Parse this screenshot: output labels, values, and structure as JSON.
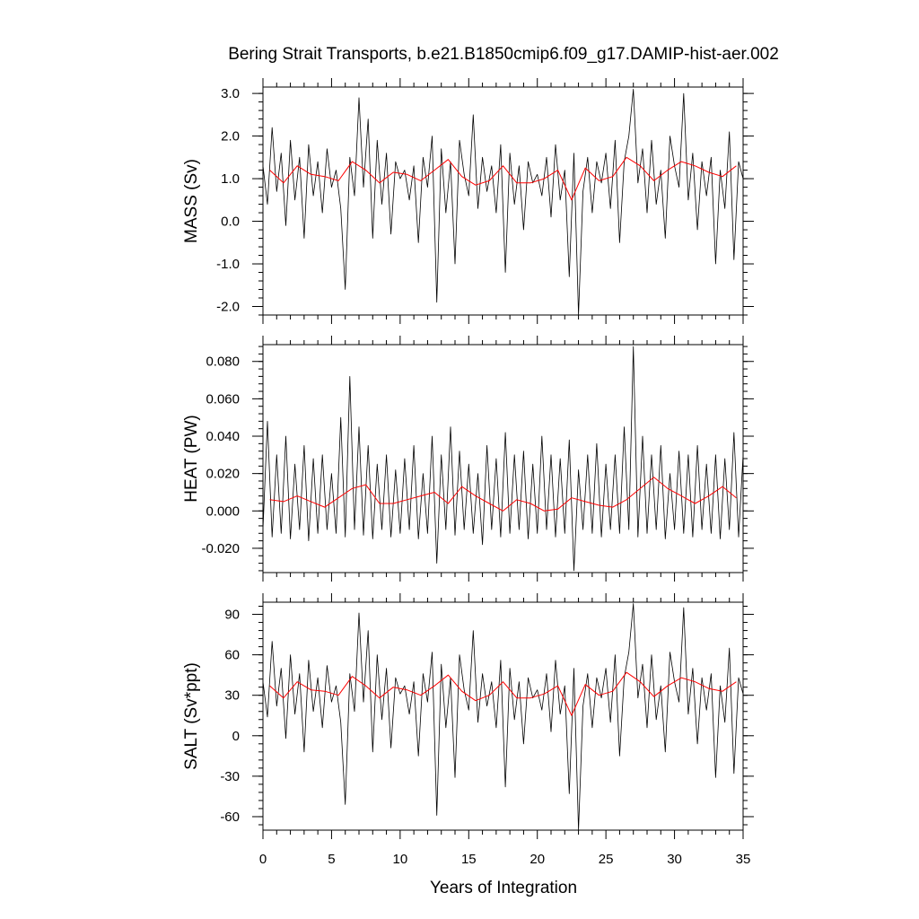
{
  "chart_data": {
    "type": "line",
    "title": "Bering Strait Transports, b.e21.B1850cmip6.f09_g17.DAMIP-hist-aer.002",
    "xlabel": "Years of Integration",
    "xlim": [
      0,
      35
    ],
    "x_ticks": [
      0,
      5,
      10,
      15,
      20,
      25,
      30,
      35
    ],
    "x_tick_labels": [
      "0",
      "5",
      "10",
      "15",
      "20",
      "25",
      "30",
      "35"
    ],
    "panels": [
      {
        "ylabel": "MASS (Sv)",
        "ylim": [
          -2.2,
          3.15
        ],
        "y_ticks": [
          -2.0,
          -1.0,
          0.0,
          1.0,
          2.0,
          3.0
        ],
        "y_tick_labels": [
          "-2.0",
          "-1.0",
          "0.0",
          "1.0",
          "2.0",
          "3.0"
        ],
        "series": [
          {
            "resolution": "monthly",
            "color": "#000000",
            "x": [
              0.0,
              0.33,
              0.67,
              1.0,
              1.33,
              1.67,
              2.0,
              2.33,
              2.67,
              3.0,
              3.33,
              3.67,
              4.0,
              4.33,
              4.67,
              5.0,
              5.33,
              5.67,
              6.0,
              6.33,
              6.67,
              7.0,
              7.33,
              7.67,
              8.0,
              8.33,
              8.67,
              9.0,
              9.33,
              9.67,
              10.0,
              10.33,
              10.67,
              11.0,
              11.33,
              11.67,
              12.0,
              12.33,
              12.67,
              13.0,
              13.33,
              13.67,
              14.0,
              14.33,
              14.67,
              15.0,
              15.33,
              15.67,
              16.0,
              16.33,
              16.67,
              17.0,
              17.33,
              17.67,
              18.0,
              18.33,
              18.67,
              19.0,
              19.33,
              19.67,
              20.0,
              20.33,
              20.67,
              21.0,
              21.33,
              21.67,
              22.0,
              22.33,
              22.67,
              23.0,
              23.33,
              23.67,
              24.0,
              24.33,
              24.67,
              25.0,
              25.33,
              25.67,
              26.0,
              26.33,
              26.67,
              27.0,
              27.33,
              27.67,
              28.0,
              28.33,
              28.67,
              29.0,
              29.33,
              29.67,
              30.0,
              30.33,
              30.67,
              31.0,
              31.33,
              31.67,
              32.0,
              32.33,
              32.67,
              33.0,
              33.33,
              33.67,
              34.0,
              34.33,
              34.67,
              35.0
            ],
            "values": [
              1.3,
              0.4,
              2.2,
              0.7,
              1.6,
              -0.1,
              1.9,
              0.5,
              1.5,
              -0.4,
              1.8,
              0.6,
              1.4,
              0.2,
              1.7,
              0.8,
              1.2,
              0.3,
              -1.6,
              1.5,
              0.6,
              2.9,
              0.8,
              2.4,
              -0.4,
              1.9,
              0.4,
              1.6,
              -0.3,
              1.4,
              1.0,
              1.2,
              0.5,
              1.3,
              -0.5,
              1.5,
              0.8,
              2.0,
              -1.9,
              1.7,
              0.2,
              1.4,
              -1.0,
              1.9,
              1.1,
              0.6,
              2.5,
              0.3,
              1.5,
              0.7,
              1.3,
              0.2,
              1.8,
              -1.2,
              1.6,
              0.4,
              1.3,
              -0.2,
              1.4,
              0.9,
              1.1,
              0.6,
              1.5,
              0.1,
              1.8,
              0.5,
              1.2,
              -1.3,
              1.6,
              -2.2,
              0.7,
              1.5,
              0.2,
              1.4,
              0.9,
              1.6,
              0.3,
              1.9,
              -0.5,
              1.4,
              2.0,
              3.1,
              0.9,
              1.7,
              0.2,
              1.9,
              0.4,
              1.2,
              -0.4,
              2.0,
              1.3,
              0.8,
              3.0,
              0.5,
              1.6,
              -0.2,
              1.4,
              0.6,
              1.5,
              -1.0,
              1.2,
              0.3,
              2.1,
              -0.9,
              1.4,
              1.0
            ]
          },
          {
            "resolution": "annual",
            "color": "#ff0000",
            "x": [
              0.5,
              1.5,
              2.5,
              3.5,
              4.5,
              5.5,
              6.5,
              7.5,
              8.5,
              9.5,
              10.5,
              11.5,
              12.5,
              13.5,
              14.5,
              15.5,
              16.5,
              17.5,
              18.5,
              19.5,
              20.5,
              21.5,
              22.5,
              23.5,
              24.5,
              25.5,
              26.5,
              27.5,
              28.5,
              29.5,
              30.5,
              31.5,
              32.5,
              33.5,
              34.5
            ],
            "values": [
              1.2,
              0.9,
              1.3,
              1.1,
              1.05,
              0.95,
              1.4,
              1.2,
              0.9,
              1.15,
              1.1,
              0.95,
              1.2,
              1.45,
              1.05,
              0.85,
              0.95,
              1.3,
              0.9,
              0.9,
              1.0,
              1.2,
              0.5,
              1.25,
              0.95,
              1.05,
              1.5,
              1.3,
              0.95,
              1.2,
              1.4,
              1.3,
              1.15,
              1.05,
              1.3
            ]
          }
        ]
      },
      {
        "ylabel": "HEAT (PW)",
        "ylim": [
          -0.033,
          0.089
        ],
        "y_ticks": [
          -0.02,
          0.0,
          0.02,
          0.04,
          0.06,
          0.08
        ],
        "y_tick_labels": [
          "-0.020",
          "0.000",
          "0.020",
          "0.040",
          "0.060",
          "0.080"
        ],
        "series": [
          {
            "resolution": "monthly",
            "color": "#000000",
            "x": [
              0.0,
              0.33,
              0.67,
              1.0,
              1.33,
              1.67,
              2.0,
              2.33,
              2.67,
              3.0,
              3.33,
              3.67,
              4.0,
              4.33,
              4.67,
              5.0,
              5.33,
              5.67,
              6.0,
              6.33,
              6.67,
              7.0,
              7.33,
              7.67,
              8.0,
              8.33,
              8.67,
              9.0,
              9.33,
              9.67,
              10.0,
              10.33,
              10.67,
              11.0,
              11.33,
              11.67,
              12.0,
              12.33,
              12.67,
              13.0,
              13.33,
              13.67,
              14.0,
              14.33,
              14.67,
              15.0,
              15.33,
              15.67,
              16.0,
              16.33,
              16.67,
              17.0,
              17.33,
              17.67,
              18.0,
              18.33,
              18.67,
              19.0,
              19.33,
              19.67,
              20.0,
              20.33,
              20.67,
              21.0,
              21.33,
              21.67,
              22.0,
              22.33,
              22.67,
              23.0,
              23.33,
              23.67,
              24.0,
              24.33,
              24.67,
              25.0,
              25.33,
              25.67,
              26.0,
              26.33,
              26.67,
              27.0,
              27.33,
              27.67,
              28.0,
              28.33,
              28.67,
              29.0,
              29.33,
              29.67,
              30.0,
              30.33,
              30.67,
              31.0,
              31.33,
              31.67,
              32.0,
              32.33,
              32.67,
              33.0,
              33.33,
              33.67,
              34.0,
              34.33,
              34.67,
              35.0
            ],
            "values": [
              -0.01,
              0.048,
              -0.014,
              0.03,
              -0.012,
              0.04,
              -0.015,
              0.025,
              -0.01,
              0.035,
              -0.016,
              0.028,
              -0.012,
              0.03,
              -0.01,
              0.02,
              -0.012,
              0.05,
              -0.014,
              0.072,
              -0.01,
              0.045,
              -0.013,
              0.035,
              -0.015,
              0.025,
              -0.01,
              0.03,
              -0.014,
              0.022,
              -0.012,
              0.028,
              -0.01,
              0.035,
              -0.015,
              0.02,
              -0.012,
              0.04,
              -0.028,
              0.03,
              -0.01,
              0.045,
              -0.013,
              0.032,
              -0.01,
              0.025,
              -0.012,
              0.02,
              -0.018,
              0.035,
              -0.01,
              0.028,
              -0.014,
              0.042,
              -0.012,
              0.03,
              -0.01,
              0.032,
              -0.015,
              0.025,
              -0.012,
              0.04,
              -0.01,
              0.03,
              -0.014,
              0.028,
              -0.012,
              0.038,
              -0.032,
              0.022,
              -0.01,
              0.03,
              -0.012,
              0.036,
              -0.014,
              0.025,
              -0.01,
              0.03,
              -0.012,
              0.045,
              -0.01,
              0.088,
              -0.014,
              0.04,
              -0.012,
              0.03,
              -0.01,
              0.035,
              -0.015,
              0.02,
              -0.01,
              0.032,
              -0.012,
              0.03,
              -0.014,
              0.035,
              -0.01,
              0.025,
              -0.012,
              0.03,
              -0.015,
              0.028,
              -0.01,
              0.042,
              -0.014,
              0.03
            ]
          },
          {
            "resolution": "annual",
            "color": "#ff0000",
            "x": [
              0.5,
              1.5,
              2.5,
              3.5,
              4.5,
              5.5,
              6.5,
              7.5,
              8.5,
              9.5,
              10.5,
              11.5,
              12.5,
              13.5,
              14.5,
              15.5,
              16.5,
              17.5,
              18.5,
              19.5,
              20.5,
              21.5,
              22.5,
              23.5,
              24.5,
              25.5,
              26.5,
              27.5,
              28.5,
              29.5,
              30.5,
              31.5,
              32.5,
              33.5,
              34.5
            ],
            "values": [
              0.006,
              0.005,
              0.008,
              0.005,
              0.002,
              0.007,
              0.012,
              0.014,
              0.004,
              0.004,
              0.006,
              0.008,
              0.01,
              0.004,
              0.013,
              0.008,
              0.004,
              0.0,
              0.006,
              0.004,
              0.0,
              0.001,
              0.007,
              0.005,
              0.003,
              0.002,
              0.006,
              0.012,
              0.018,
              0.012,
              0.008,
              0.004,
              0.008,
              0.013,
              0.007
            ]
          }
        ]
      },
      {
        "ylabel": "SALT (Sv*ppt)",
        "ylim": [
          -70,
          99
        ],
        "y_ticks": [
          -60,
          -30,
          0,
          30,
          60,
          90
        ],
        "y_tick_labels": [
          "-60",
          "-30",
          "0",
          "30",
          "60",
          "90"
        ],
        "series": [
          {
            "resolution": "monthly",
            "color": "#000000",
            "x": [
              0.0,
              0.33,
              0.67,
              1.0,
              1.33,
              1.67,
              2.0,
              2.33,
              2.67,
              3.0,
              3.33,
              3.67,
              4.0,
              4.33,
              4.67,
              5.0,
              5.33,
              5.67,
              6.0,
              6.33,
              6.67,
              7.0,
              7.33,
              7.67,
              8.0,
              8.33,
              8.67,
              9.0,
              9.33,
              9.67,
              10.0,
              10.33,
              10.67,
              11.0,
              11.33,
              11.67,
              12.0,
              12.33,
              12.67,
              13.0,
              13.33,
              13.67,
              14.0,
              14.33,
              14.67,
              15.0,
              15.33,
              15.67,
              16.0,
              16.33,
              16.67,
              17.0,
              17.33,
              17.67,
              18.0,
              18.33,
              18.67,
              19.0,
              19.33,
              19.67,
              20.0,
              20.33,
              20.67,
              21.0,
              21.33,
              21.67,
              22.0,
              22.33,
              22.67,
              23.0,
              23.33,
              23.67,
              24.0,
              24.33,
              24.67,
              25.0,
              25.33,
              25.67,
              26.0,
              26.33,
              26.67,
              27.0,
              27.33,
              27.67,
              28.0,
              28.33,
              28.67,
              29.0,
              29.33,
              29.67,
              30.0,
              30.33,
              30.67,
              31.0,
              31.33,
              31.67,
              32.0,
              32.33,
              32.67,
              33.0,
              33.33,
              33.67,
              34.0,
              34.33,
              34.67,
              35.0
            ],
            "values": [
              40,
              14,
              70,
              22,
              50,
              -2,
              60,
              16,
              46,
              -12,
              56,
              18,
              43,
              6,
              52,
              25,
              37,
              10,
              -51,
              46,
              18,
              91,
              25,
              78,
              -12,
              60,
              12,
              50,
              -9,
              43,
              31,
              37,
              16,
              40,
              -15,
              46,
              25,
              62,
              -59,
              53,
              6,
              43,
              -31,
              60,
              34,
              19,
              78,
              10,
              46,
              22,
              40,
              6,
              56,
              -38,
              50,
              12,
              40,
              -6,
              43,
              28,
              34,
              19,
              46,
              3,
              56,
              16,
              37,
              -43,
              50,
              -70,
              22,
              46,
              6,
              43,
              28,
              50,
              10,
              60,
              -15,
              43,
              62,
              98,
              28,
              53,
              6,
              60,
              12,
              37,
              -12,
              62,
              40,
              25,
              95,
              16,
              50,
              -6,
              43,
              19,
              46,
              -31,
              37,
              10,
              65,
              -28,
              43,
              31
            ]
          },
          {
            "resolution": "annual",
            "color": "#ff0000",
            "x": [
              0.5,
              1.5,
              2.5,
              3.5,
              4.5,
              5.5,
              6.5,
              7.5,
              8.5,
              9.5,
              10.5,
              11.5,
              12.5,
              13.5,
              14.5,
              15.5,
              16.5,
              17.5,
              18.5,
              19.5,
              20.5,
              21.5,
              22.5,
              23.5,
              24.5,
              25.5,
              26.5,
              27.5,
              28.5,
              29.5,
              30.5,
              31.5,
              32.5,
              33.5,
              34.5
            ],
            "values": [
              37,
              28,
              40,
              34,
              33,
              30,
              44,
              37,
              28,
              36,
              34,
              30,
              37,
              45,
              33,
              26,
              30,
              40,
              28,
              28,
              31,
              37,
              15,
              38,
              30,
              33,
              47,
              40,
              29,
              37,
              43,
              40,
              35,
              33,
              40
            ]
          }
        ]
      }
    ]
  }
}
